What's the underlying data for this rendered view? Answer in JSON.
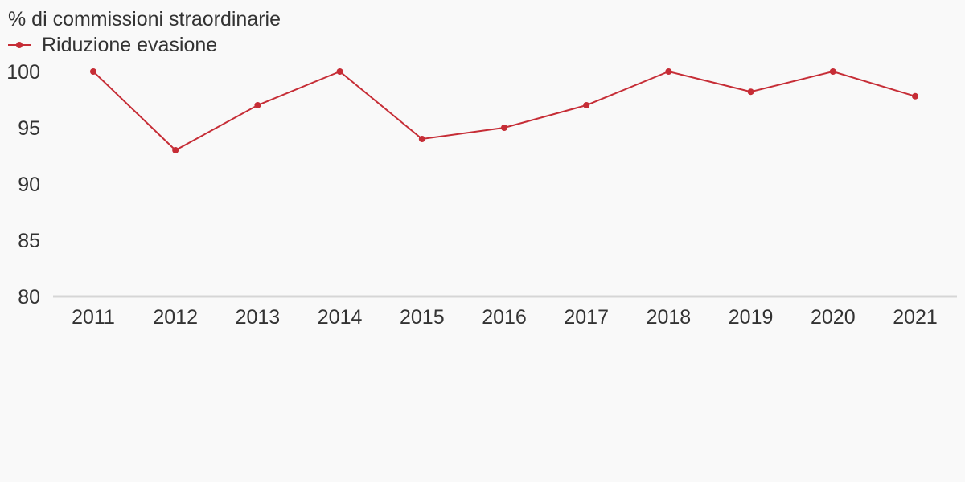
{
  "chart_data": {
    "type": "line",
    "title": "",
    "ylabel": "% di commissioni straordinarie",
    "xlabel": "",
    "x": [
      "2011",
      "2012",
      "2013",
      "2014",
      "2015",
      "2016",
      "2017",
      "2018",
      "2019",
      "2020",
      "2021"
    ],
    "series": [
      {
        "name": "Riduzione evasione",
        "color": "#c62d36",
        "values": [
          100,
          93,
          97,
          100,
          94,
          95,
          97,
          100,
          98.2,
          100,
          97.8
        ]
      }
    ],
    "ylim": [
      80,
      100
    ],
    "yticks": [
      "100",
      "95",
      "90",
      "85",
      "80"
    ],
    "grid": false,
    "legend_position": "top-left"
  }
}
